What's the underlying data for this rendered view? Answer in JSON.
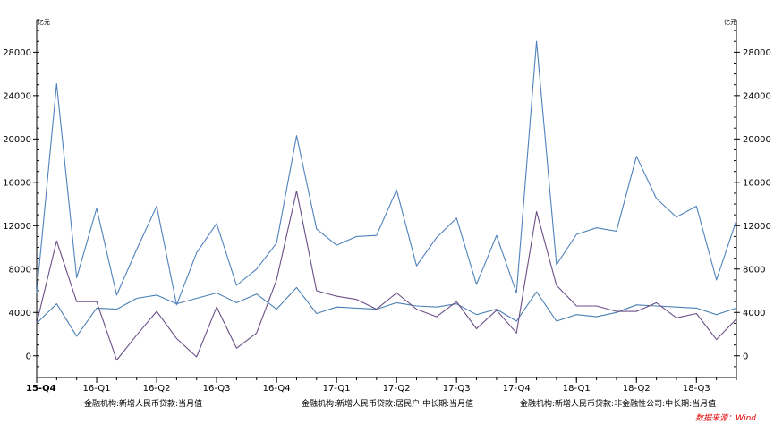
{
  "chart_data": {
    "type": "line",
    "unit_left": "亿元",
    "unit_right": "亿元",
    "ylim": [
      -2000,
      31000
    ],
    "yticks": [
      0,
      4000,
      8000,
      12000,
      16000,
      20000,
      24000,
      28000
    ],
    "x_index_range": [
      0,
      35
    ],
    "x_ticks": [
      {
        "label": "15-Q4",
        "index": 0
      },
      {
        "label": "16-Q1",
        "index": 3
      },
      {
        "label": "16-Q2",
        "index": 6
      },
      {
        "label": "16-Q3",
        "index": 9
      },
      {
        "label": "16-Q4",
        "index": 12
      },
      {
        "label": "17-Q1",
        "index": 15
      },
      {
        "label": "17-Q2",
        "index": 18
      },
      {
        "label": "17-Q3",
        "index": 21
      },
      {
        "label": "17-Q4",
        "index": 24
      },
      {
        "label": "18-Q1",
        "index": 27
      },
      {
        "label": "18-Q2",
        "index": 30
      },
      {
        "label": "18-Q3",
        "index": 33
      }
    ],
    "series": [
      {
        "name": "金融机构:新增人民币贷款:当月值",
        "color": "#4f81bd",
        "values": [
          5800,
          25100,
          7200,
          13600,
          5600,
          9800,
          13800,
          4700,
          9500,
          12200,
          6500,
          8000,
          10400,
          20300,
          11700,
          10200,
          11000,
          11100,
          15300,
          8300,
          10900,
          12700,
          6600,
          11100,
          5800,
          29000,
          8400,
          11200,
          11800,
          11500,
          18400,
          14500,
          12800,
          13800,
          7000,
          12500
        ]
      },
      {
        "name": "金融机构:新增人民币贷款:居民户:中长期:当月值",
        "color": "#4a7fb3",
        "values": [
          3000,
          4800,
          1800,
          4400,
          4300,
          5300,
          5600,
          4800,
          5300,
          5800,
          4900,
          5700,
          4300,
          6300,
          3900,
          4500,
          4400,
          4300,
          4900,
          4600,
          4500,
          4800,
          3800,
          4300,
          3200,
          5900,
          3200,
          3800,
          3600,
          4000,
          4700,
          4600,
          4500,
          4400,
          3800,
          4400
        ]
      },
      {
        "name": "金融机构:新增人民币贷款:非金融性公司:中长期:当月值",
        "color": "#6a4f86",
        "values": [
          3000,
          10600,
          5000,
          5000,
          -400,
          1900,
          4100,
          1600,
          -100,
          4500,
          700,
          2100,
          7000,
          15200,
          6000,
          5500,
          5200,
          4300,
          5800,
          4300,
          3600,
          5000,
          2500,
          4200,
          2100,
          13300,
          6500,
          4600,
          4600,
          4100,
          4100,
          4900,
          3500,
          3900,
          1500,
          3400
        ]
      }
    ]
  },
  "source_text": "数据来源：Wind"
}
